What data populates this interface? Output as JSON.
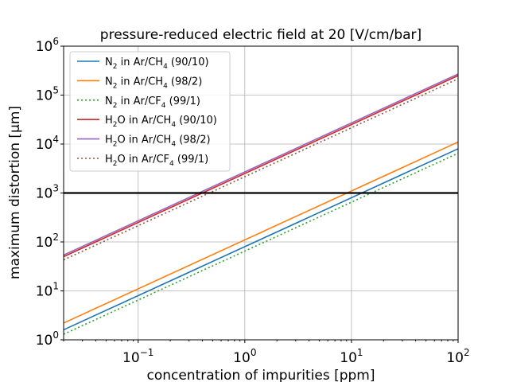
{
  "chart_data": {
    "type": "line",
    "title": "pressure-reduced electric field at 20 [V/cm/bar]",
    "xlabel": "concentration of impurities [ppm]",
    "ylabel": "maximum distortion [μm]",
    "xscale": "log",
    "yscale": "log",
    "xlim": [
      0.02,
      100
    ],
    "ylim": [
      1,
      1000000
    ],
    "grid": true,
    "legend_position": "upper-left",
    "x_ticks": [
      {
        "value": 0.1,
        "base": "10",
        "exp": "−1"
      },
      {
        "value": 1,
        "base": "10",
        "exp": "0"
      },
      {
        "value": 10,
        "base": "10",
        "exp": "1"
      },
      {
        "value": 100,
        "base": "10",
        "exp": "2"
      }
    ],
    "y_ticks": [
      {
        "value": 1,
        "base": "10",
        "exp": "0"
      },
      {
        "value": 10,
        "base": "10",
        "exp": "1"
      },
      {
        "value": 100,
        "base": "10",
        "exp": "2"
      },
      {
        "value": 1000,
        "base": "10",
        "exp": "3"
      },
      {
        "value": 10000,
        "base": "10",
        "exp": "4"
      },
      {
        "value": 100000,
        "base": "10",
        "exp": "5"
      },
      {
        "value": 1000000,
        "base": "10",
        "exp": "6"
      }
    ],
    "reference_line": {
      "y": 1000,
      "color": "#000000"
    },
    "series": [
      {
        "id": "n2-arch4-90-10",
        "label_main": "N",
        "label_sub1": "2",
        "label_mid": " in Ar/CH",
        "label_sub2": "4",
        "label_end": " (90/10)",
        "color": "#1f77b4",
        "style": "solid",
        "x": [
          0.02,
          100
        ],
        "y": [
          1.6,
          8000
        ]
      },
      {
        "id": "n2-arch4-98-2",
        "label_main": "N",
        "label_sub1": "2",
        "label_mid": " in Ar/CH",
        "label_sub2": "4",
        "label_end": " (98/2)",
        "color": "#ff7f0e",
        "style": "solid",
        "x": [
          0.02,
          100
        ],
        "y": [
          2.2,
          11000
        ]
      },
      {
        "id": "n2-arcf4-99-1",
        "label_main": "N",
        "label_sub1": "2",
        "label_mid": " in Ar/CF",
        "label_sub2": "4",
        "label_end": " (99/1)",
        "color": "#2ca02c",
        "style": "dotted",
        "x": [
          0.02,
          100
        ],
        "y": [
          1.3,
          6500
        ]
      },
      {
        "id": "h2o-arch4-90-10",
        "label_main": "H",
        "label_sub1": "2",
        "label_mid": "O in Ar/CH",
        "label_sub2": "4",
        "label_end": " (90/10)",
        "color": "#d62728",
        "style": "solid",
        "x": [
          0.02,
          100
        ],
        "y": [
          50,
          250000
        ]
      },
      {
        "id": "h2o-arch4-98-2",
        "label_main": "H",
        "label_sub1": "2",
        "label_mid": "O in Ar/CH",
        "label_sub2": "4",
        "label_end": " (98/2)",
        "color": "#9467bd",
        "style": "solid",
        "x": [
          0.02,
          100
        ],
        "y": [
          54,
          270000
        ]
      },
      {
        "id": "h2o-arcf4-99-1",
        "label_main": "H",
        "label_sub1": "2",
        "label_mid": "O in Ar/CF",
        "label_sub2": "4",
        "label_end": " (99/1)",
        "color": "#8c564b",
        "style": "dotted",
        "x": [
          0.02,
          100
        ],
        "y": [
          43,
          215000
        ]
      }
    ]
  }
}
